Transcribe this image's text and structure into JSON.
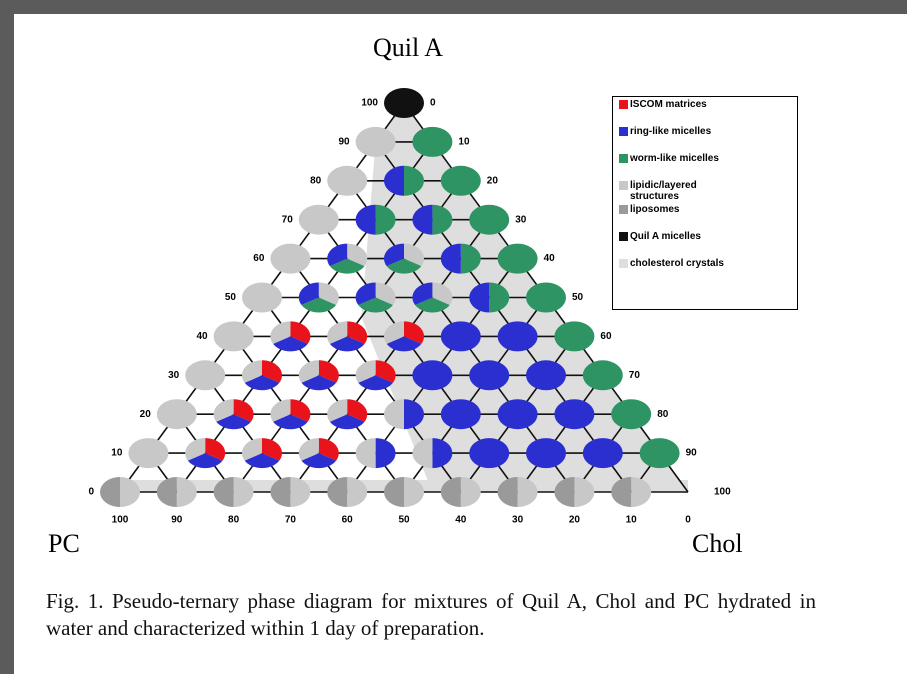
{
  "figure": {
    "axis_labels": {
      "top": "Quil A",
      "left": "PC",
      "right": "Chol"
    },
    "left_ticks": [
      100,
      90,
      80,
      70,
      60,
      50,
      40,
      30,
      20,
      10,
      0
    ],
    "right_ticks": [
      0,
      10,
      20,
      30,
      40,
      50,
      60,
      70,
      80,
      90,
      100
    ],
    "bottom_ticks": [
      100,
      90,
      80,
      70,
      60,
      50,
      40,
      30,
      20,
      10,
      0
    ],
    "legend": [
      {
        "name": "ISCOM matrices",
        "color": "#e8131b"
      },
      {
        "name": "ring-like micelles",
        "color": "#2b2fd0"
      },
      {
        "name": "worm-like micelles",
        "color": "#2e9464"
      },
      {
        "name": "lipidic/layered structures",
        "color": "#c8c8c8"
      },
      {
        "name": "liposomes",
        "color": "#9a9a9a"
      },
      {
        "name": "Quil A micelles",
        "color": "#111111"
      },
      {
        "name": "cholesterol crystals",
        "color": "#dedede"
      }
    ],
    "phases": [
      [
        [
          3,
          4
        ],
        [
          3,
          4
        ],
        [
          3,
          4
        ],
        [
          3,
          4
        ],
        [
          3,
          4
        ],
        [
          3,
          4
        ],
        [
          3,
          4
        ],
        [
          3,
          4
        ],
        [
          3,
          4
        ],
        [
          3,
          4
        ],
        null
      ],
      [
        3,
        [
          0,
          1,
          3
        ],
        [
          0,
          1,
          3
        ],
        [
          0,
          1,
          3
        ],
        [
          1,
          3
        ],
        [
          1,
          3
        ],
        1,
        1,
        1,
        2
      ],
      [
        3,
        [
          0,
          1,
          3
        ],
        [
          0,
          1,
          3
        ],
        [
          0,
          1,
          3
        ],
        [
          1,
          3
        ],
        1,
        1,
        1,
        2
      ],
      [
        3,
        [
          0,
          1,
          3
        ],
        [
          0,
          1,
          3
        ],
        [
          0,
          1,
          3
        ],
        1,
        1,
        1,
        2
      ],
      [
        3,
        [
          0,
          1,
          3
        ],
        [
          0,
          1,
          3
        ],
        [
          0,
          1,
          3
        ],
        1,
        1,
        2
      ],
      [
        3,
        [
          3,
          2,
          1
        ],
        [
          3,
          2,
          1
        ],
        [
          3,
          2,
          1
        ],
        [
          2,
          1
        ],
        2
      ],
      [
        3,
        [
          3,
          2,
          1
        ],
        [
          3,
          2,
          1
        ],
        [
          2,
          1
        ],
        2
      ],
      [
        3,
        [
          2,
          1
        ],
        [
          2,
          1
        ],
        2
      ],
      [
        3,
        [
          2,
          1
        ],
        2
      ],
      [
        3,
        2
      ],
      [
        5
      ]
    ],
    "caption": "Fig. 1. Pseudo-ternary phase diagram for mixtures of Quil A, Chol and PC hydrated in water and characterized within 1 day of preparation."
  }
}
